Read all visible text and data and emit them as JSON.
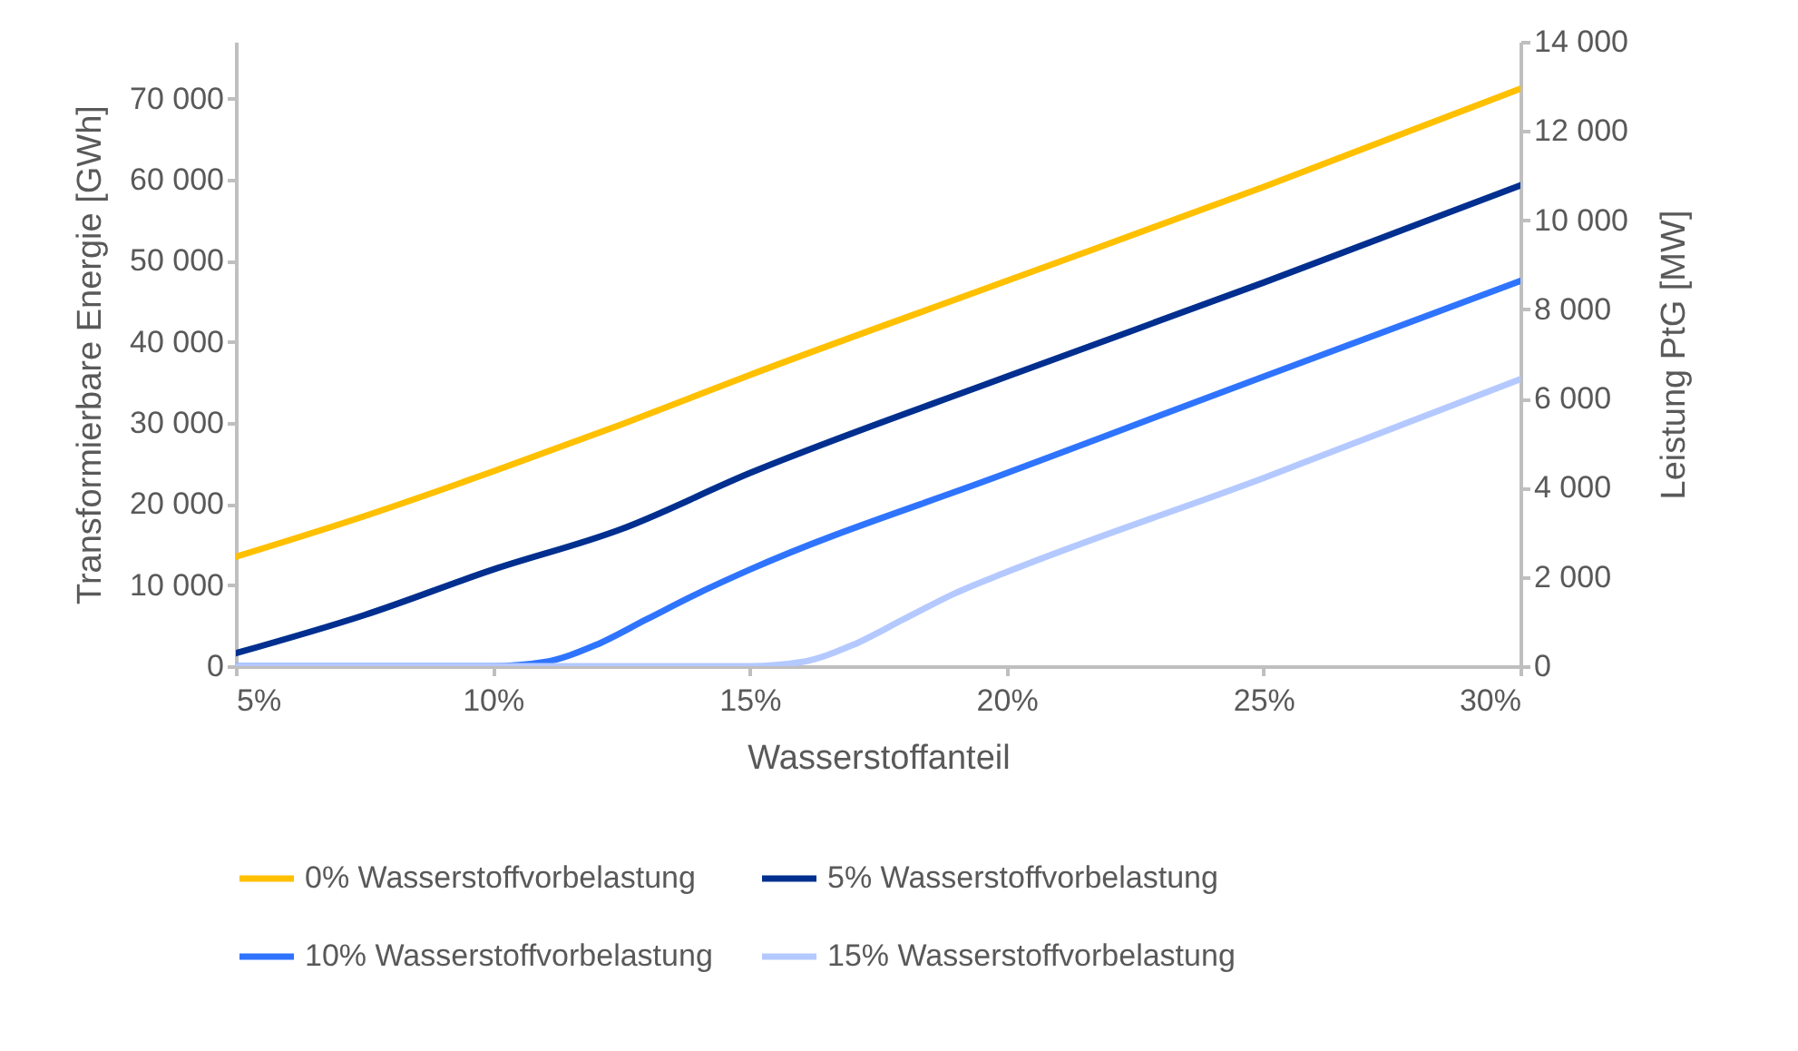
{
  "chart_data": {
    "type": "line",
    "xlabel": "Wasserstoffanteil",
    "ylabel": "Transformierbare Energie [GWh]",
    "y2label": "Leistung PtG [MW]",
    "x": [
      5,
      7.5,
      10,
      11,
      12,
      12.5,
      13,
      14,
      15,
      16,
      17,
      18,
      19,
      20,
      25,
      30
    ],
    "series": [
      {
        "name": "0% Wasserstoffvorbelastung",
        "color": "#ffc000",
        "values": [
          13500,
          18500,
          24000,
          null,
          null,
          29800,
          null,
          null,
          35900,
          null,
          null,
          null,
          null,
          47500,
          59100,
          71200
        ]
      },
      {
        "name": "5% Wasserstoffvorbelastung",
        "color": "#002f8f",
        "values": [
          1600,
          6300,
          11900,
          null,
          null,
          16900,
          null,
          null,
          23800,
          null,
          null,
          null,
          null,
          35700,
          47300,
          59300
        ]
      },
      {
        "name": "10% Wasserstoffvorbelastung",
        "color": "#2f74ff",
        "values": [
          0,
          0,
          0,
          500,
          2600,
          null,
          5800,
          9000,
          11900,
          null,
          null,
          null,
          null,
          23800,
          35700,
          47500
        ]
      },
      {
        "name": "15% Wasserstoffvorbelastung",
        "color": "#b4c9ff",
        "values": [
          0,
          0,
          0,
          0,
          0,
          0,
          0,
          0,
          0,
          500,
          2600,
          5800,
          9000,
          11600,
          23200,
          35400
        ]
      }
    ],
    "xlim": [
      5,
      30
    ],
    "xticks": [
      {
        "value": 5,
        "label": "5%"
      },
      {
        "value": 10,
        "label": "10%"
      },
      {
        "value": 15,
        "label": "15%"
      },
      {
        "value": 20,
        "label": "20%"
      },
      {
        "value": 25,
        "label": "25%"
      },
      {
        "value": 30,
        "label": "30%"
      }
    ],
    "ylim": [
      0,
      77000
    ],
    "yticks": [
      {
        "value": 0,
        "label": "0"
      },
      {
        "value": 10000,
        "label": "10 000"
      },
      {
        "value": 20000,
        "label": "20 000"
      },
      {
        "value": 30000,
        "label": "30 000"
      },
      {
        "value": 40000,
        "label": "40 000"
      },
      {
        "value": 50000,
        "label": "50 000"
      },
      {
        "value": 60000,
        "label": "60 000"
      },
      {
        "value": 70000,
        "label": "70 000"
      }
    ],
    "y2lim": [
      0,
      14000
    ],
    "y2ticks": [
      {
        "value": 0,
        "label": "0"
      },
      {
        "value": 2000,
        "label": "2 000"
      },
      {
        "value": 4000,
        "label": "4 000"
      },
      {
        "value": 6000,
        "label": "6 000"
      },
      {
        "value": 8000,
        "label": "8 000"
      },
      {
        "value": 10000,
        "label": "10 000"
      },
      {
        "value": 12000,
        "label": "12 000"
      },
      {
        "value": 14000,
        "label": "14 000"
      }
    ],
    "grid": false,
    "legend": "bottom",
    "marker": "none",
    "line_style": "solid"
  }
}
